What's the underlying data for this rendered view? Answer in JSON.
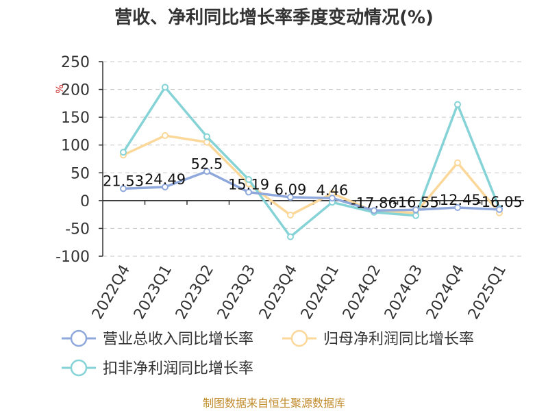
{
  "chart_data": {
    "type": "line",
    "title": "营收、净利同比增长率季度变动情况(%)",
    "unit": "%",
    "categories": [
      "2022Q4",
      "2023Q1",
      "2023Q2",
      "2023Q3",
      "2023Q4",
      "2024Q1",
      "2024Q2",
      "2024Q3",
      "2024Q4",
      "2025Q1"
    ],
    "ylim": [
      -100,
      250
    ],
    "yticks": [
      250,
      200,
      150,
      100,
      50,
      0,
      -50,
      -100
    ],
    "grid": true,
    "legend_position": "bottom",
    "series": [
      {
        "name": "营业总收入同比增长率",
        "color": "#8fa8dc",
        "values": [
          21.53,
          24.49,
          52.5,
          15.19,
          6.09,
          4.46,
          -17.86,
          -16.55,
          -12.45,
          -16.05
        ],
        "labels": [
          "21.53",
          "24.49",
          "52.5",
          "15.19",
          "6.09",
          "4.46",
          "-17.86",
          "-16.55",
          "-12.45",
          "-16.05"
        ]
      },
      {
        "name": "归母净利润同比增长率",
        "color": "#fbd89a",
        "values": [
          82,
          117,
          105,
          30,
          -26,
          13,
          -19,
          -22,
          68,
          -22
        ]
      },
      {
        "name": "扣非净利润同比增长率",
        "color": "#85d3d6",
        "values": [
          87,
          204,
          115,
          38,
          -65,
          -3,
          -21,
          -27,
          173,
          -14
        ]
      }
    ],
    "source": "制图数据来自恒生聚源数据库",
    "source_color": "#c08a2a",
    "unit_color": "#cc2222"
  }
}
